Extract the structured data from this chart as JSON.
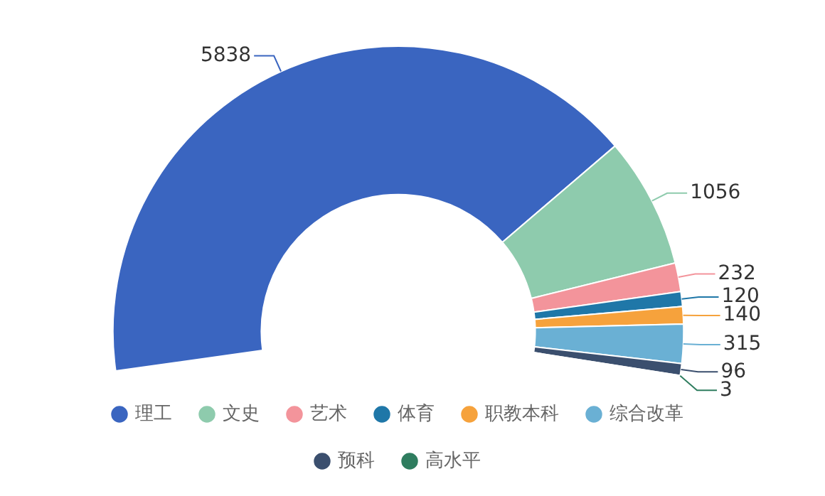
{
  "chart_data": {
    "type": "donut",
    "categories": [
      "理工",
      "文史",
      "艺术",
      "体育",
      "职教本科",
      "综合改革",
      "预科",
      "高水平"
    ],
    "values": [
      5838,
      1056,
      232,
      120,
      140,
      315,
      96,
      3
    ],
    "colors": [
      "#3a65c0",
      "#8ecbad",
      "#f3949b",
      "#1f77a8",
      "#f6a23c",
      "#6ab0d4",
      "#3b4f6e",
      "#2f7d5f"
    ],
    "data_labels": true,
    "legend": "bottom"
  }
}
